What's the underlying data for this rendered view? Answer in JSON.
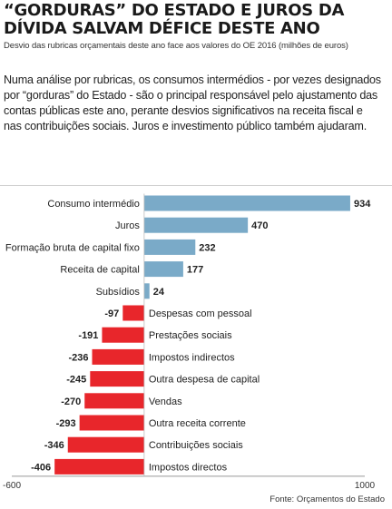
{
  "header": {
    "title": "“GORDURAS” DO ESTADO E JUROS DA DÍVIDA SALVAM DÉFICE DESTE ANO",
    "subtitle": "Desvio das rubricas orçamentais deste ano face aos valores do OE 2016 (milhões de euros)",
    "body": "Numa análise por rubricas, os consumos intermédios - por vezes designados por “gorduras” do Estado - são o principal responsável pelo ajustamento das contas públicas este ano, perante desvios significativos na receita fiscal e nas contribuições sociais. Juros e investimento público também ajudaram."
  },
  "chart_data": {
    "type": "bar",
    "orientation": "horizontal",
    "categories": [
      "Consumo intermédio",
      "Juros",
      "Formação bruta de capital fixo",
      "Receita de capital",
      "Subsídios",
      "Despesas com pessoal",
      "Prestações sociais",
      "Impostos indirectos",
      "Outra despesa de capital",
      "Vendas",
      "Outra receita corrente",
      "Contribuições sociais",
      "Impostos directos"
    ],
    "values": [
      934,
      470,
      232,
      177,
      24,
      -97,
      -191,
      -236,
      -245,
      -270,
      -293,
      -346,
      -406
    ],
    "value_labels": [
      "934",
      "470",
      "232",
      "177",
      "24",
      "-97",
      "-191",
      "-236",
      "-245",
      "-270",
      "-293",
      "-346",
      "-406"
    ],
    "xlim": [
      -600,
      1000
    ],
    "x_ticks": [
      "-600",
      "1000"
    ],
    "grid": false,
    "colors": {
      "positive": "#7aaac8",
      "negative": "#e8262b"
    }
  },
  "footer": {
    "source": "Fonte: Orçamentos do Estado"
  }
}
